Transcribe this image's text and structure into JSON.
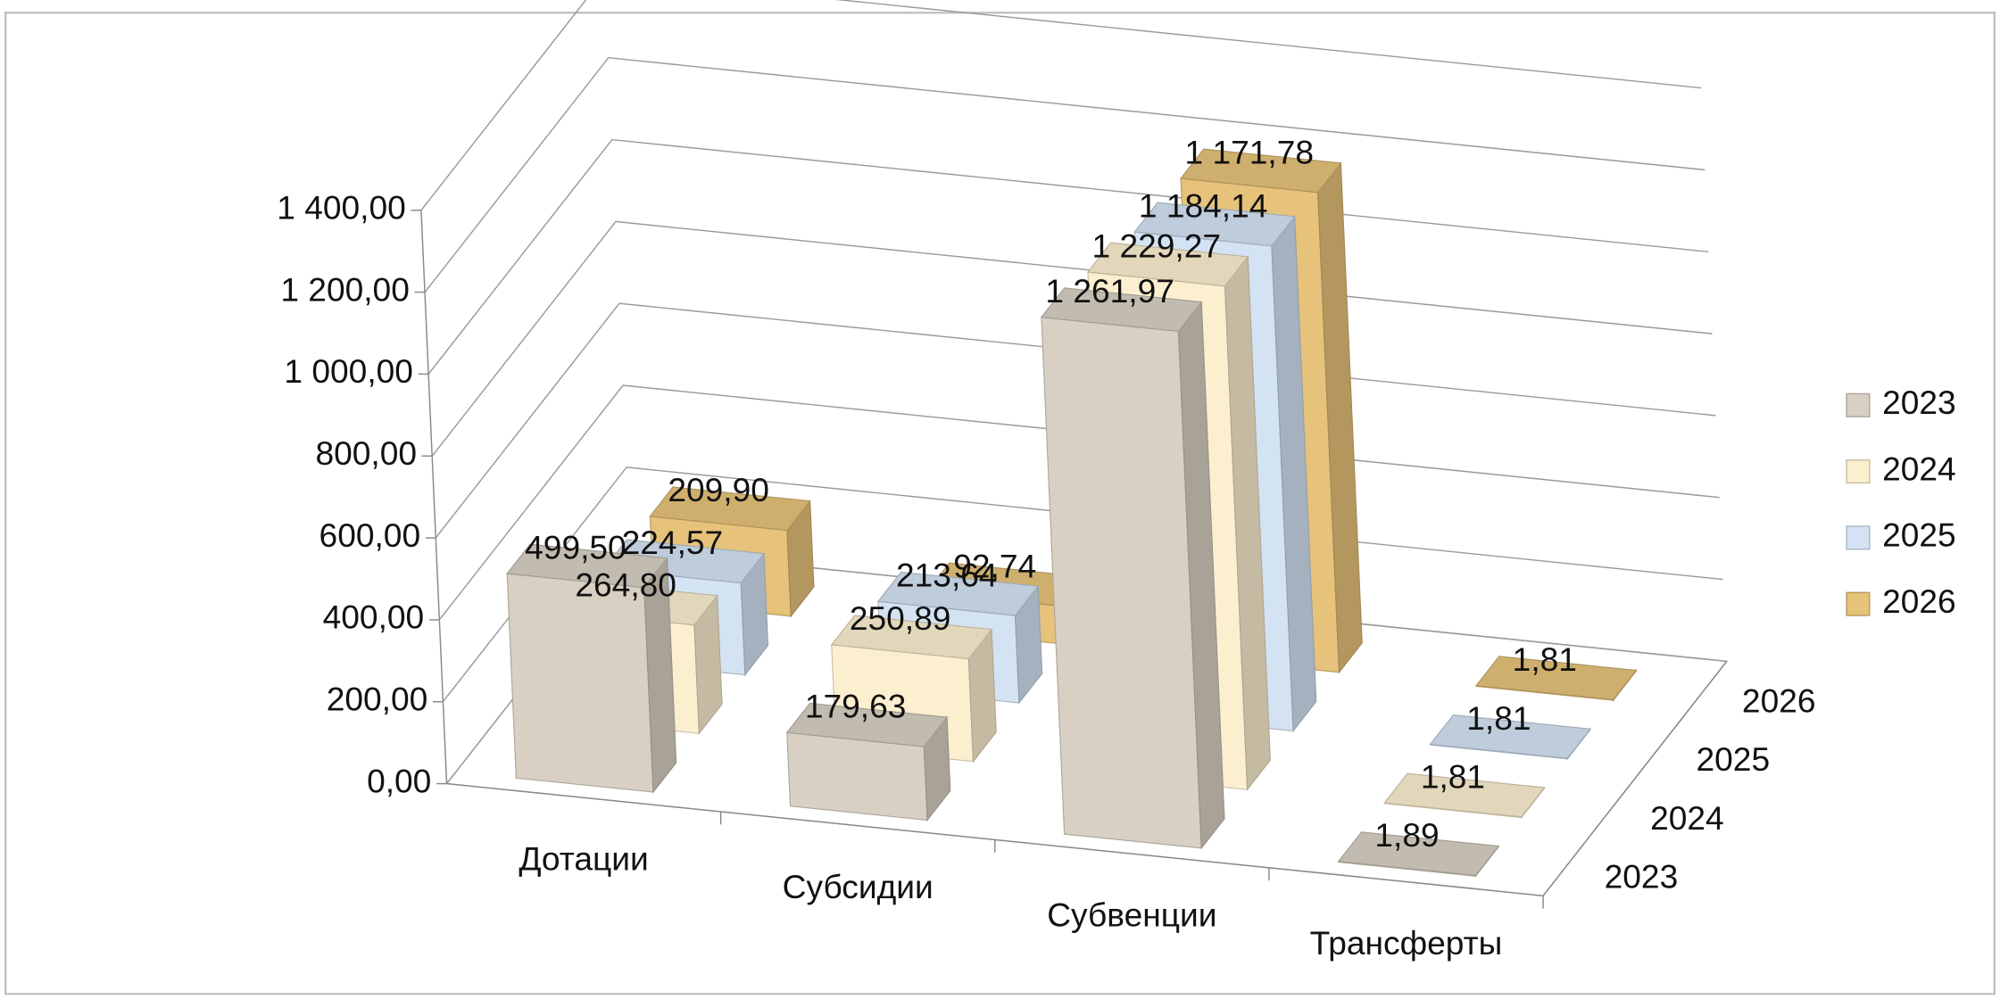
{
  "chart_data": {
    "type": "bar3d",
    "categories": [
      "Дотации",
      "Субсидии",
      "Субвенции",
      "Трансферты"
    ],
    "series": [
      {
        "name": "2023",
        "color": "#d8d0c2",
        "values": [
          499.5,
          179.63,
          1261.97,
          1.89
        ],
        "value_labels": [
          "499,50",
          "179,63",
          "1 261,97",
          "1,89"
        ]
      },
      {
        "name": "2024",
        "color": "#fcefd0",
        "values": [
          264.8,
          250.89,
          1229.27,
          1.81
        ],
        "value_labels": [
          "264,80",
          "250,89",
          "1 229,27",
          "1,81"
        ]
      },
      {
        "name": "2025",
        "color": "#d3e3f4",
        "values": [
          224.57,
          213.64,
          1184.14,
          1.81
        ],
        "value_labels": [
          "224,57",
          "213,64",
          "1 184,14",
          "1,81"
        ]
      },
      {
        "name": "2026",
        "color": "#e6c27a",
        "values": [
          209.9,
          92.74,
          1171.78,
          1.81
        ],
        "value_labels": [
          "209,90",
          "92,74",
          "1 171,78",
          "1,81"
        ]
      }
    ],
    "ylim": [
      0,
      1400
    ],
    "yticks": [
      {
        "value": 0,
        "label": "0,00"
      },
      {
        "value": 200,
        "label": "200,00"
      },
      {
        "value": 400,
        "label": "400,00"
      },
      {
        "value": 600,
        "label": "600,00"
      },
      {
        "value": 800,
        "label": "800,00"
      },
      {
        "value": 1000,
        "label": "1 000,00"
      },
      {
        "value": 1200,
        "label": "1 200,00"
      },
      {
        "value": 1400,
        "label": "1 400,00"
      }
    ],
    "grid": true,
    "legend": "right"
  }
}
